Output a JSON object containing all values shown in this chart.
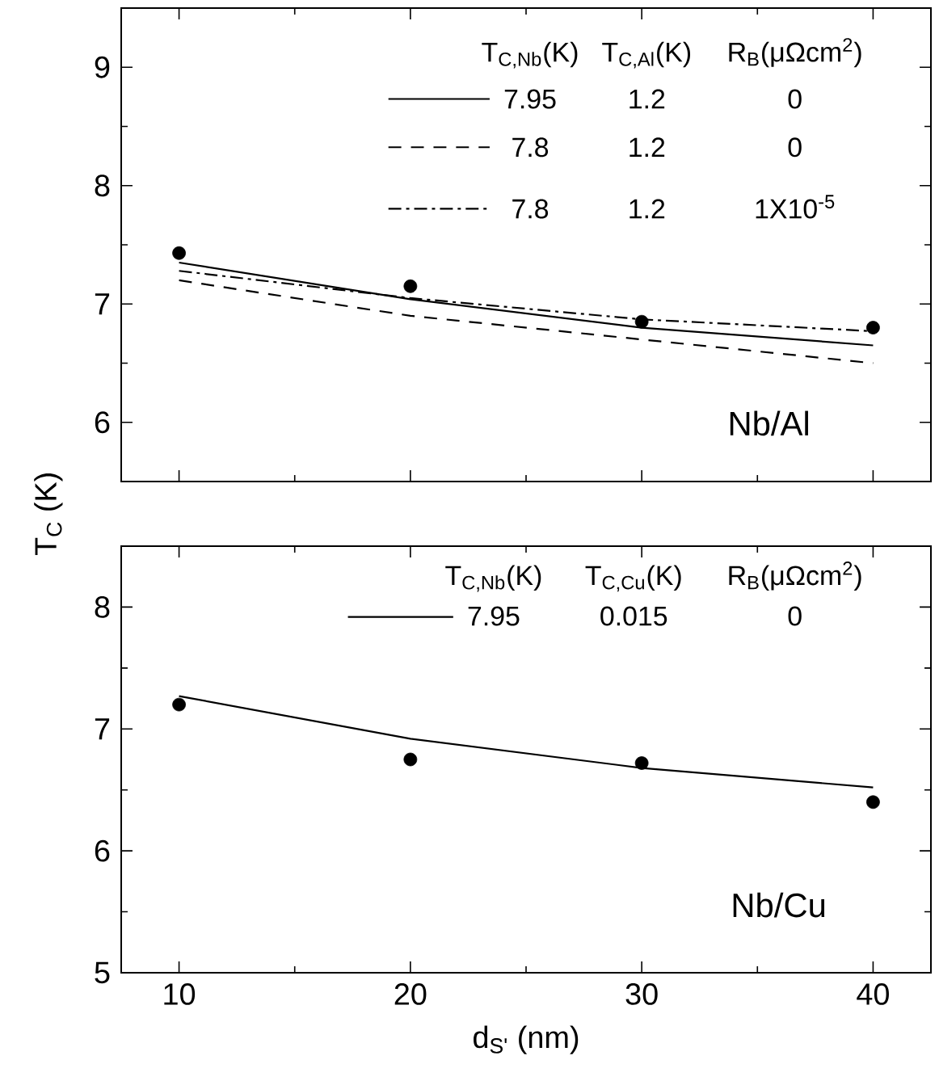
{
  "chart_data": [
    {
      "type": "line",
      "ylabel": "T$_{C}$ (K)",
      "x": [
        10,
        20,
        30,
        40
      ],
      "xlim": [
        7.5,
        42.5
      ],
      "ylim": [
        5.5,
        9.5
      ],
      "xticks": [
        10,
        20,
        30,
        40
      ],
      "yticks": [
        6,
        7,
        8,
        9
      ],
      "tick_labels": "y",
      "legend": "top",
      "series": [
        {
          "type": "scatter",
          "marker": "circle",
          "color": "#000000",
          "values": [
            7.43,
            7.15,
            6.85,
            6.8
          ]
        },
        {
          "type": "line",
          "name": "7.95",
          "line_style": "solid",
          "color": "#000000",
          "values": [
            7.35,
            7.04,
            6.8,
            6.65
          ]
        },
        {
          "type": "line",
          "name": "7.8",
          "line_style": "dashed",
          "color": "#000000",
          "values": [
            7.2,
            6.9,
            6.7,
            6.5
          ]
        },
        {
          "type": "line",
          "name": "7.8",
          "line_style": "dashdot",
          "color": "#000000",
          "values": [
            7.28,
            7.05,
            6.87,
            6.77
          ]
        }
      ],
      "annotations": [
        "T$_{C,Nb}$(K)",
        "T$_{C,Al}$(K)",
        "R$_{B}$(μΩcm$^{2}$)",
        "1.2",
        "0",
        "1.2",
        "0",
        "1.2",
        "1X10$^{-5}$",
        "Nb/Al"
      ]
    },
    {
      "type": "line",
      "xlabel": "d$_{S'}$ (nm)",
      "x": [
        10,
        20,
        30,
        40
      ],
      "xlim": [
        7.5,
        42.5
      ],
      "ylim": [
        5,
        8.5
      ],
      "xticks": [
        10,
        20,
        30,
        40
      ],
      "yticks": [
        5,
        6,
        7,
        8
      ],
      "legend": "top",
      "series": [
        {
          "type": "scatter",
          "marker": "circle",
          "color": "#000000",
          "values": [
            7.2,
            6.75,
            6.72,
            6.4
          ]
        },
        {
          "type": "line",
          "name": "7.95",
          "line_style": "solid",
          "color": "#000000",
          "values": [
            7.27,
            6.92,
            6.68,
            6.52
          ]
        }
      ],
      "annotations": [
        "T$_{C,Nb}$(K)",
        "T$_{C,Cu}$(K)",
        "R$_{B}$(μΩcm$^{2}$)",
        "0.015",
        "0",
        "Nb/Cu"
      ]
    }
  ]
}
